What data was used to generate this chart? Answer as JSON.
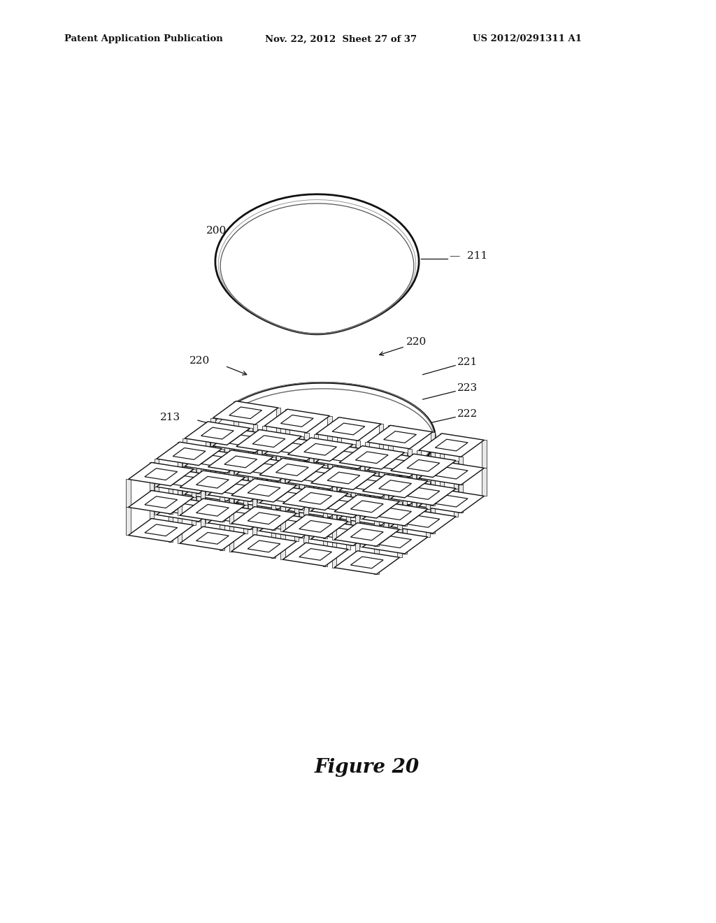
{
  "title": "Figure 20",
  "header_left": "Patent Application Publication",
  "header_mid": "Nov. 22, 2012  Sheet 27 of 37",
  "header_right": "US 2012/0291311 A1",
  "bg_color": "#ffffff",
  "line_color": "#111111",
  "fig_title_size": 20,
  "header_size": 9.5,
  "label_size": 11,
  "n_cols": 5,
  "n_rows": 4,
  "n_layers": 3
}
